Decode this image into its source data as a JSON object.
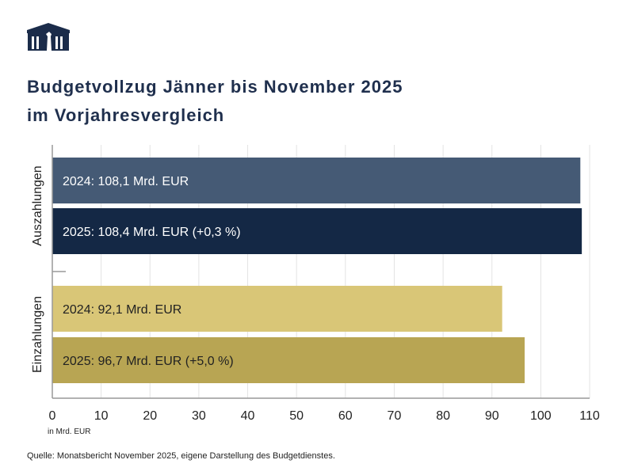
{
  "title_lines": [
    "Budgetvollzug Jänner bis November 2025",
    "im Vorjahresvergleich"
  ],
  "unit_label": "in Mrd. EUR",
  "source": "Quelle: Monatsbericht November 2025, eigene Darstellung des Budgetdienstes.",
  "chart_data": {
    "type": "bar",
    "orientation": "horizontal",
    "title": "Budgetvollzug Jänner bis November 2025 im Vorjahresvergleich",
    "xlabel": "in Mrd. EUR",
    "xlim": [
      0,
      110
    ],
    "xticks": [
      0,
      10,
      20,
      30,
      40,
      50,
      60,
      70,
      80,
      90,
      100,
      110
    ],
    "grid": true,
    "groups": [
      {
        "name": "Auszahlungen",
        "bars": [
          {
            "label": "2024: 108,1 Mrd. EUR",
            "value": 108.1,
            "color": "#455a75",
            "text_color": "#ffffff"
          },
          {
            "label": "2025: 108,4 Mrd. EUR (+0,3 %)",
            "value": 108.4,
            "color": "#142845",
            "text_color": "#ffffff"
          }
        ]
      },
      {
        "name": "Einzahlungen",
        "bars": [
          {
            "label": "2024: 92,1 Mrd. EUR",
            "value": 92.1,
            "color": "#d9c677",
            "text_color": "#222222"
          },
          {
            "label": "2025: 96,7 Mrd. EUR (+5,0 %)",
            "value": 96.7,
            "color": "#b8a553",
            "text_color": "#222222"
          }
        ]
      }
    ]
  }
}
